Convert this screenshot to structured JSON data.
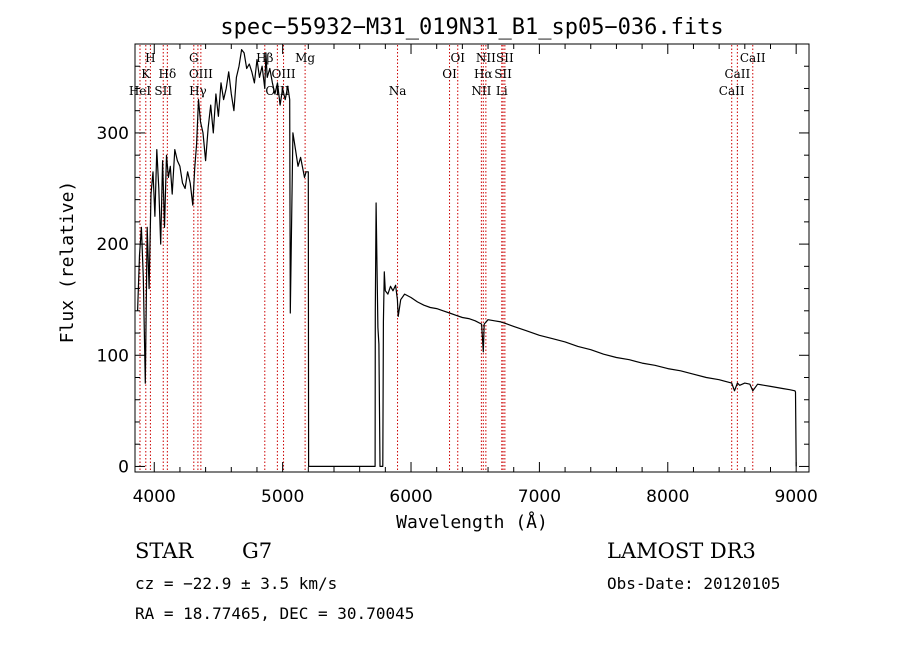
{
  "chart_data": {
    "type": "line",
    "title": "spec−55932−M31_019N31_B1_sp05−036.fits",
    "xlabel": "Wavelength (Å)",
    "ylabel": "Flux (relative)",
    "xlim": [
      3850,
      9100
    ],
    "ylim": [
      -5,
      380
    ],
    "x_ticks": [
      4000,
      5000,
      6000,
      7000,
      8000,
      9000
    ],
    "y_ticks": [
      0,
      100,
      200,
      300
    ],
    "grid": false,
    "line_color": "#000000",
    "marker_color": "#cc0000",
    "series": [
      {
        "name": "flux",
        "x": [
          3870,
          3885,
          3900,
          3915,
          3930,
          3945,
          3960,
          3975,
          3990,
          4005,
          4020,
          4035,
          4050,
          4065,
          4080,
          4095,
          4110,
          4125,
          4140,
          4160,
          4180,
          4200,
          4220,
          4240,
          4260,
          4280,
          4300,
          4315,
          4330,
          4345,
          4360,
          4380,
          4400,
          4420,
          4440,
          4460,
          4480,
          4500,
          4520,
          4540,
          4560,
          4580,
          4600,
          4620,
          4640,
          4660,
          4680,
          4700,
          4720,
          4740,
          4760,
          4780,
          4800,
          4820,
          4840,
          4861,
          4870,
          4880,
          4900,
          4920,
          4940,
          4960,
          4980,
          5000,
          5020,
          5040,
          5055,
          5060,
          5080,
          5100,
          5120,
          5140,
          5160,
          5170,
          5183,
          5195,
          5200,
          5202,
          5720,
          5722,
          5728,
          5735,
          5742,
          5750,
          5758,
          5765,
          5772,
          5780,
          5785,
          5792,
          5800,
          5820,
          5840,
          5860,
          5880,
          5894,
          5900,
          5920,
          5950,
          6000,
          6050,
          6100,
          6150,
          6200,
          6250,
          6300,
          6350,
          6400,
          6450,
          6500,
          6550,
          6563,
          6570,
          6600,
          6650,
          6700,
          6750,
          6800,
          6900,
          7000,
          7100,
          7200,
          7300,
          7400,
          7500,
          7600,
          7700,
          7800,
          7900,
          8000,
          8100,
          8200,
          8300,
          8400,
          8498,
          8520,
          8542,
          8560,
          8600,
          8640,
          8662,
          8700,
          8750,
          8800,
          8850,
          8900,
          8950,
          8990,
          8995,
          9000
        ],
        "y": [
          140,
          190,
          215,
          170,
          75,
          215,
          160,
          245,
          265,
          225,
          285,
          250,
          200,
          275,
          215,
          280,
          260,
          270,
          245,
          285,
          275,
          270,
          255,
          250,
          265,
          255,
          235,
          268,
          290,
          330,
          310,
          300,
          275,
          305,
          325,
          300,
          335,
          315,
          345,
          330,
          340,
          355,
          335,
          320,
          350,
          360,
          375,
          372,
          358,
          362,
          355,
          345,
          366,
          350,
          360,
          340,
          372,
          350,
          358,
          345,
          335,
          345,
          325,
          340,
          330,
          342,
          330,
          138,
          300,
          285,
          270,
          278,
          266,
          260,
          265,
          265,
          265,
          0,
          0,
          140,
          237,
          180,
          125,
          110,
          0,
          0,
          0,
          0,
          130,
          175,
          158,
          155,
          162,
          158,
          163,
          150,
          135,
          150,
          155,
          152,
          148,
          145,
          143,
          142,
          140,
          138,
          136,
          134,
          133,
          131,
          128,
          103,
          128,
          132,
          131,
          130,
          128,
          126,
          122,
          118,
          115,
          112,
          108,
          105,
          101,
          98,
          96,
          93,
          91,
          88,
          86,
          83,
          80,
          78,
          75,
          68,
          75,
          73,
          75,
          74,
          68,
          74,
          73,
          72,
          71,
          70,
          69,
          68,
          67,
          0
        ],
        "values_note": "approximate readings of the plotted spectrum"
      }
    ],
    "lines": [
      {
        "wavelength": 3889,
        "label": "HeI",
        "row": 3
      },
      {
        "wavelength": 3934,
        "label": "K",
        "row": 2
      },
      {
        "wavelength": 3970,
        "label": "H",
        "row": 1
      },
      {
        "wavelength": 4070,
        "label": "SII",
        "row": 3
      },
      {
        "wavelength": 4102,
        "label": "Hδ",
        "row": 2
      },
      {
        "wavelength": 4308,
        "label": "G",
        "row": 1
      },
      {
        "wavelength": 4340,
        "label": "Hγ",
        "row": 3
      },
      {
        "wavelength": 4363,
        "label": "OIII",
        "row": 2
      },
      {
        "wavelength": 4861,
        "label": "Hβ",
        "row": 1
      },
      {
        "wavelength": 4959,
        "label": "OIII",
        "row": 3
      },
      {
        "wavelength": 5007,
        "label": "OIII",
        "row": 2
      },
      {
        "wavelength": 5175,
        "label": "Mg",
        "row": 1
      },
      {
        "wavelength": 5895,
        "label": "Na",
        "row": 3
      },
      {
        "wavelength": 6300,
        "label": "OI",
        "row": 2
      },
      {
        "wavelength": 6364,
        "label": "OI",
        "row": 1
      },
      {
        "wavelength": 6548,
        "label": "NII",
        "row": 3
      },
      {
        "wavelength": 6563,
        "label": "Hα",
        "row": 2
      },
      {
        "wavelength": 6583,
        "label": "NII",
        "row": 1
      },
      {
        "wavelength": 6707,
        "label": "Li",
        "row": 3
      },
      {
        "wavelength": 6717,
        "label": "SII",
        "row": 2
      },
      {
        "wavelength": 6731,
        "label": "SII",
        "row": 1
      },
      {
        "wavelength": 8498,
        "label": "CaII",
        "row": 3
      },
      {
        "wavelength": 8542,
        "label": "CaII",
        "row": 2
      },
      {
        "wavelength": 8662,
        "label": "CaII",
        "row": 1
      }
    ]
  },
  "info": {
    "object_class": "STAR",
    "subclass": "G7",
    "survey": "LAMOST  DR3",
    "cz_line": "cz = −22.9 ± 3.5 km/s",
    "obs_date": "Obs-Date: 20120105",
    "coords_line": "RA =  18.77465, DEC =  30.70045"
  }
}
